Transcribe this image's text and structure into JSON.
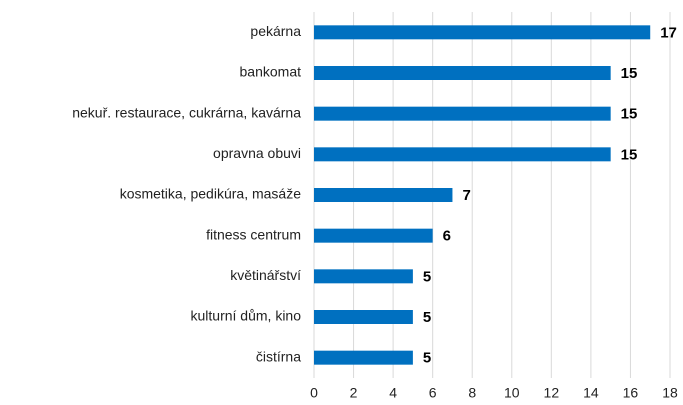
{
  "chart_data": {
    "type": "bar",
    "orientation": "horizontal",
    "color": "#0070c0",
    "categories": [
      "pekárna",
      "bankomat",
      "nekuř. restaurace, cukrárna, kavárna",
      "opravna obuvi",
      "kosmetika, pedikúra, masáže",
      "fitness centrum",
      "květinářství",
      "kulturní dům, kino",
      "čistírna"
    ],
    "values": [
      17,
      15,
      15,
      15,
      7,
      6,
      5,
      5,
      5
    ],
    "xlim": [
      0,
      18
    ],
    "xticks": [
      0,
      2,
      4,
      6,
      8,
      10,
      12,
      14,
      16,
      18
    ],
    "grid": true
  }
}
